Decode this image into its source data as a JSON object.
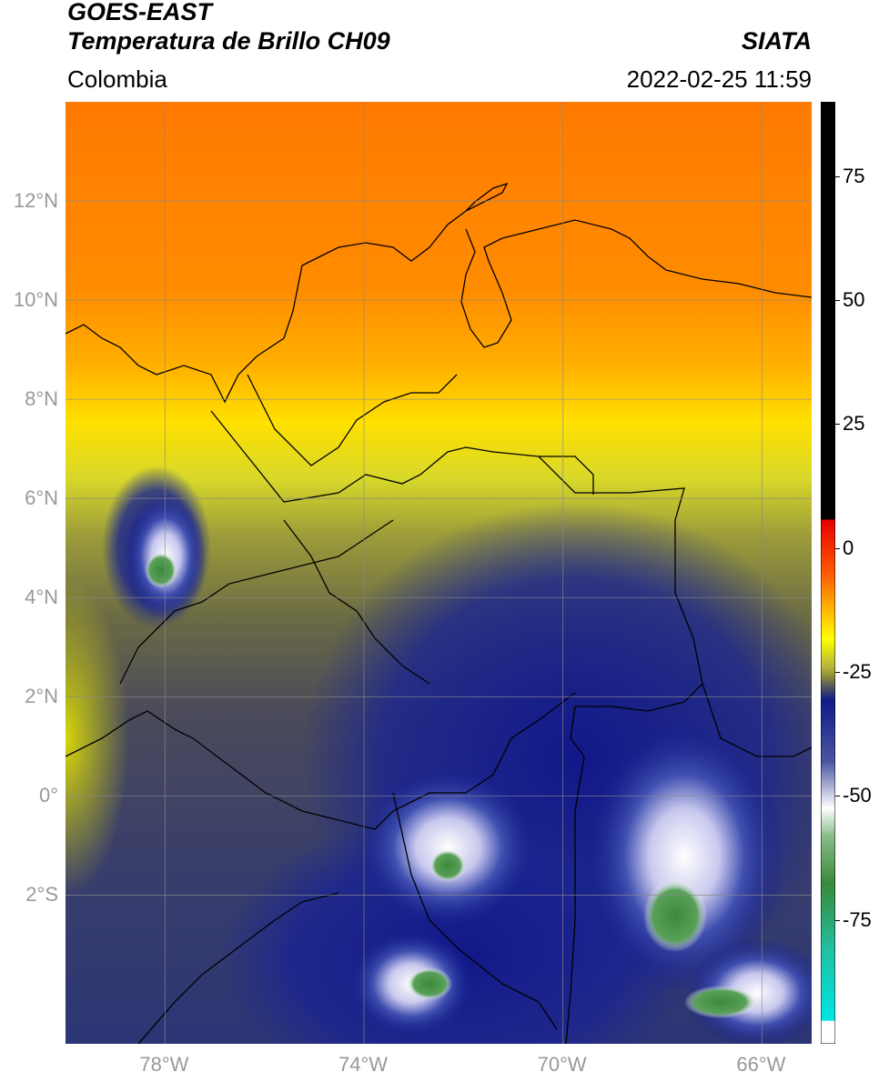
{
  "header": {
    "satellite": "GOES-EAST",
    "product": "Temperatura de Brillo CH09",
    "region": "Colombia",
    "org": "SIATA",
    "datetime": "2022-02-25 11:59"
  },
  "map": {
    "lat_labels": [
      "12°N",
      "10°N",
      "8°N",
      "6°N",
      "4°N",
      "2°N",
      "0°",
      "2°S"
    ],
    "lon_labels": [
      "78°W",
      "74°W",
      "70°W",
      "66°W"
    ],
    "extent": {
      "lon": [
        -80,
        -65
      ],
      "lat": [
        -5,
        14
      ]
    },
    "grid": true
  },
  "colorbar": {
    "ticks": [
      "75",
      "50",
      "25",
      "0",
      "-25",
      "-50",
      "-75"
    ],
    "range": [
      -100,
      90
    ],
    "colors": {
      "black": "#000000",
      "red": "#e60000",
      "orange": "#ff7f00",
      "yellow": "#ffff00",
      "olive": "#8c8c3a",
      "gray": "#5a5a5a",
      "navy": "#0f1a8a",
      "white": "#ffffff",
      "green": "#3a8a3a",
      "teal": "#20c0a0",
      "cyan": "#00e6e6"
    }
  }
}
